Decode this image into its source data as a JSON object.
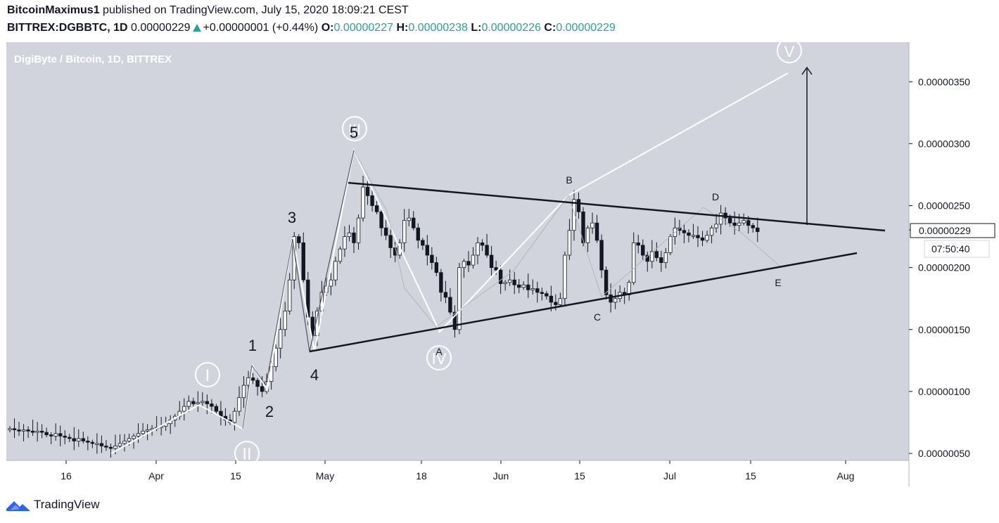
{
  "header": {
    "author": "BitcoinMaximus1",
    "published": "published on TradingView.com, July 15, 2020 18:09:21 CEST",
    "symbol": "BITTREX:DGBBTC, 1D",
    "last": "0.00000229",
    "change": "+0.00000001 (+0.44%)",
    "o_label": "O:",
    "o": "0.00000227",
    "h_label": "H:",
    "h": "0.00000238",
    "l_label": "L:",
    "l": "0.00000226",
    "c_label": "C:",
    "c": "0.00000229"
  },
  "footer": {
    "brand": "TradingView",
    "logo_icon": "tradingview-logo-icon"
  },
  "colors": {
    "plot_bg": "#d1d4dc",
    "up": "#ffffff",
    "down": "#131722",
    "positive": "#26a69a",
    "wave_line": "#ffffff"
  },
  "chart_data": {
    "type": "candlestick",
    "title": "DigiByte / Bitcoin, 1D, BITTREX",
    "x_ticks": [
      "16",
      "Apr",
      "15",
      "May",
      "18",
      "Jun",
      "15",
      "Jul",
      "15",
      "Aug"
    ],
    "y_ticks": [
      "0.00000350",
      "0.00000300",
      "0.00000250",
      "0.00000200",
      "0.00000150",
      "0.00000100",
      "0.00000050"
    ],
    "y_range_satoshi": [
      45,
      390
    ],
    "last_price_label": "0.00000229",
    "countdown": "07:50:40",
    "closes_satoshi": [
      70,
      69,
      68,
      69,
      68,
      67,
      68,
      67,
      65,
      64,
      66,
      64,
      63,
      62,
      60,
      62,
      60,
      59,
      58,
      58,
      56,
      55,
      54,
      56,
      58,
      60,
      62,
      64,
      66,
      68,
      69,
      70,
      71,
      72,
      74,
      77,
      80,
      84,
      88,
      92,
      90,
      91,
      92,
      90,
      88,
      84,
      80,
      77,
      75,
      84,
      95,
      105,
      111,
      109,
      104,
      100,
      108,
      120,
      135,
      150,
      165,
      190,
      225,
      220,
      190,
      160,
      145,
      165,
      180,
      185,
      190,
      205,
      215,
      225,
      228,
      220,
      240,
      265,
      258,
      250,
      245,
      232,
      226,
      216,
      210,
      220,
      238,
      240,
      232,
      222,
      218,
      210,
      204,
      196,
      180,
      176,
      164,
      150,
      200,
      205,
      202,
      210,
      220,
      218,
      210,
      200,
      198,
      187,
      188,
      190,
      186,
      184,
      186,
      182,
      183,
      180,
      179,
      177,
      172,
      170,
      175,
      210,
      230,
      255,
      245,
      220,
      232,
      236,
      222,
      198,
      178,
      172,
      175,
      180,
      178,
      188,
      220,
      218,
      210,
      205,
      213,
      208,
      204,
      212,
      225,
      232,
      230,
      228,
      226,
      226,
      224,
      222,
      226,
      232,
      235,
      244,
      240,
      236,
      234,
      236,
      238,
      234,
      232,
      229
    ]
  },
  "annotations": {
    "labels": [
      "I",
      "II",
      "III",
      "IV",
      "V",
      "1",
      "2",
      "3",
      "4",
      "5",
      "A",
      "B",
      "C",
      "D",
      "E"
    ]
  }
}
